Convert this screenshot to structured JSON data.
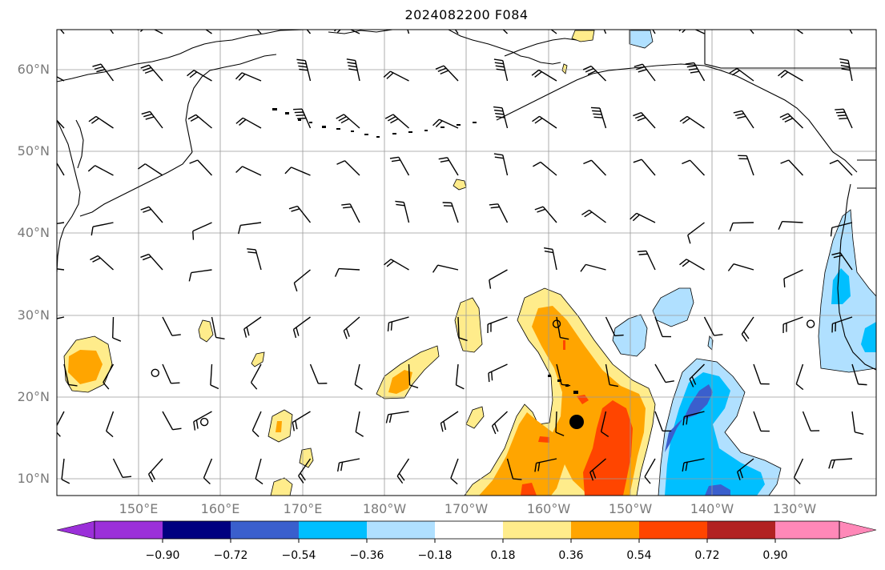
{
  "title": "2024082200 F084",
  "lat_labels": [
    "60°N",
    "50°N",
    "40°N",
    "30°N",
    "20°N",
    "10°N"
  ],
  "lon_labels": [
    "150°E",
    "160°E",
    "170°E",
    "180°W",
    "170°W",
    "160°W",
    "150°W",
    "140°W",
    "130°W"
  ],
  "colorbar": {
    "tick_labels": [
      "−0.90",
      "−0.72",
      "−0.54",
      "−0.36",
      "−0.18",
      "0.18",
      "0.36",
      "0.54",
      "0.72",
      "0.90"
    ],
    "colors": [
      "#9b30d9",
      "#000080",
      "#3a5fcd",
      "#00bfff",
      "#b0e0ff",
      "#ffffff",
      "#ffec8b",
      "#ffa500",
      "#ff4500",
      "#b22222",
      "#ff88b8"
    ]
  },
  "map_extent": {
    "lon_min": 140,
    "lon_max": 240,
    "lat_min": 8,
    "lat_max": 65
  },
  "marker": {
    "lon": 203.5,
    "lat": 17,
    "style": "filled-black-circle"
  },
  "calm_points": [
    {
      "lon": 152,
      "lat": 23
    },
    {
      "lon": 158,
      "lat": 17
    },
    {
      "lon": 201,
      "lat": 29
    },
    {
      "lon": 232,
      "lat": 29
    }
  ],
  "shading": {
    "positive": [
      {
        "level": "0.18-0.36",
        "color": "#ffec8b",
        "area": "central Pacific plume 158°W-148°W, 8°N-33°N"
      },
      {
        "level": "0.36-0.54",
        "color": "#ffa500",
        "area": "core of plume near Hawaii"
      },
      {
        "level": "0.54-0.72",
        "color": "#ff4500",
        "area": "southern plume 150°W-155°W, 9°N-19°N"
      },
      {
        "level": "0.18-0.36",
        "color": "#ffec8b",
        "area": "patch near 145°E, 24°N"
      }
    ],
    "negative": [
      {
        "level": "-0.36--0.18",
        "color": "#b0e0ff",
        "area": "east Pacific 145°W-132°W, 8°N-25°N"
      },
      {
        "level": "-0.54--0.36",
        "color": "#00bfff",
        "area": "east Pacific inner"
      },
      {
        "level": "-0.72--0.54",
        "color": "#3a5fcd",
        "area": "core near 143°W, 15°N"
      },
      {
        "level": "-0.36--0.18",
        "color": "#b0e0ff",
        "area": "off California coast 30°N-45°N"
      }
    ]
  }
}
